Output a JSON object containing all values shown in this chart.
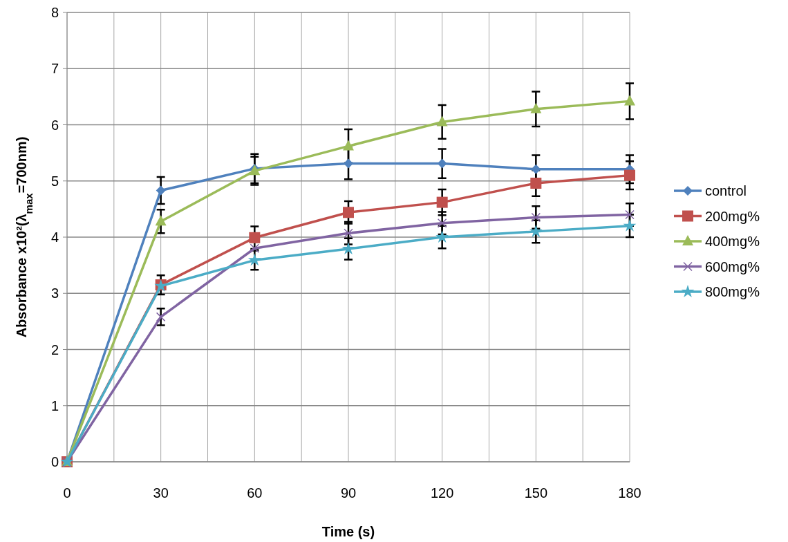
{
  "chart_data": {
    "type": "line",
    "xlabel": "Time (s)",
    "ylabel": "Absorbance x10²(λ$_{max}$=700nm)",
    "x": [
      0,
      30,
      60,
      90,
      120,
      150,
      180
    ],
    "xlim": [
      0,
      180
    ],
    "xticks": [
      0,
      {
        "value": 15,
        "label": null
      },
      30,
      {
        "value": 45,
        "label": null
      },
      60,
      {
        "value": 75,
        "label": null
      },
      90,
      {
        "value": 105,
        "label": null
      },
      120,
      {
        "value": 135,
        "label": null
      },
      150,
      {
        "value": 165,
        "label": null
      },
      180
    ],
    "ylim": [
      0,
      8
    ],
    "yticks": [
      0,
      1,
      2,
      3,
      4,
      5,
      6,
      7,
      8
    ],
    "grid": true,
    "legend": "right",
    "series": [
      {
        "name": "control",
        "color": "#4f81bd",
        "marker": "diamond",
        "values": [
          0,
          4.83,
          5.22,
          5.31,
          5.31,
          5.21,
          5.21
        ],
        "errors": [
          null,
          0.24,
          0.26,
          0.28,
          0.26,
          0.25,
          0.25
        ]
      },
      {
        "name": "200mg%",
        "color": "#c0504d",
        "marker": "square",
        "values": [
          0,
          3.15,
          3.99,
          4.44,
          4.62,
          4.96,
          5.1
        ],
        "errors": [
          null,
          0.17,
          0.2,
          0.2,
          0.23,
          0.23,
          0.25
        ]
      },
      {
        "name": "400mg%",
        "color": "#9bbb59",
        "marker": "triangle",
        "values": [
          0,
          4.28,
          5.18,
          5.62,
          6.05,
          6.28,
          6.42
        ],
        "errors": [
          null,
          0.21,
          0.25,
          0.3,
          0.3,
          0.31,
          0.32
        ]
      },
      {
        "name": "600mg%",
        "color": "#8064a2",
        "marker": "cross",
        "values": [
          0,
          2.58,
          3.8,
          4.07,
          4.25,
          4.35,
          4.4
        ],
        "errors": [
          null,
          0.15,
          null,
          0.2,
          0.2,
          0.2,
          0.2
        ]
      },
      {
        "name": "800mg%",
        "color": "#4bacc6",
        "marker": "star",
        "values": [
          0,
          3.13,
          3.59,
          3.79,
          4.0,
          4.1,
          4.2
        ],
        "errors": [
          null,
          null,
          0.17,
          0.19,
          0.2,
          0.2,
          0.2
        ]
      }
    ]
  }
}
